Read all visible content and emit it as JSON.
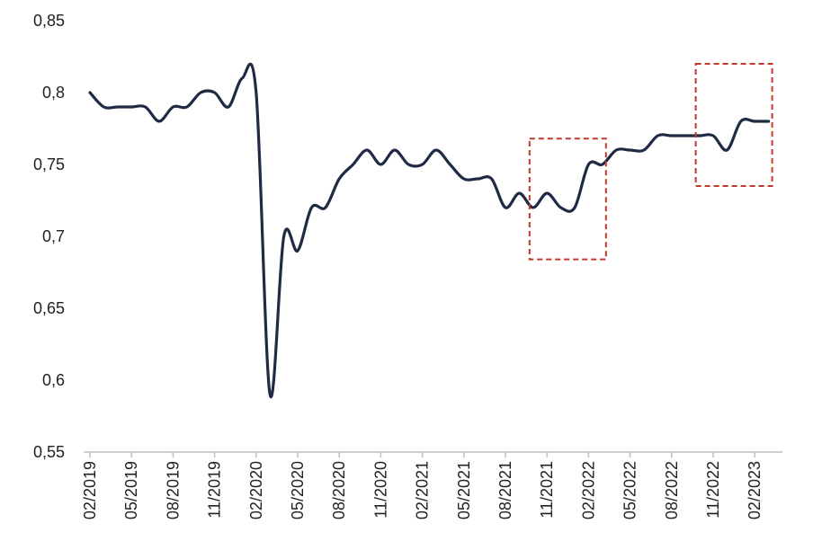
{
  "chart_data": {
    "type": "line",
    "title": "",
    "xlabel": "",
    "ylabel": "",
    "ylim": [
      0.55,
      0.85
    ],
    "y_ticks": [
      "0,55",
      "0,6",
      "0,65",
      "0,7",
      "0,75",
      "0,8",
      "0,85"
    ],
    "y_tick_values": [
      0.55,
      0.6,
      0.65,
      0.7,
      0.75,
      0.8,
      0.85
    ],
    "x_ticks": [
      "02/2019",
      "05/2019",
      "08/2019",
      "11/2019",
      "02/2020",
      "05/2020",
      "08/2020",
      "11/2020",
      "02/2021",
      "05/2021",
      "08/2021",
      "11/2021",
      "02/2022",
      "05/2022",
      "08/2022",
      "11/2022",
      "02/2023"
    ],
    "grid": false,
    "legend": "none",
    "line_color": "#1f2a44",
    "annotation_color": "#c0392b",
    "series": [
      {
        "x": [
          "02/2019",
          "03/2019",
          "04/2019",
          "05/2019",
          "06/2019",
          "07/2019",
          "08/2019",
          "09/2019",
          "10/2019",
          "11/2019",
          "12/2019",
          "01/2020",
          "02/2020",
          "03/2020",
          "04/2020",
          "05/2020",
          "06/2020",
          "07/2020",
          "08/2020",
          "09/2020",
          "10/2020",
          "11/2020",
          "12/2020",
          "01/2021",
          "02/2021",
          "03/2021",
          "04/2021",
          "05/2021",
          "06/2021",
          "07/2021",
          "08/2021",
          "09/2021",
          "10/2021",
          "11/2021",
          "12/2021",
          "01/2022",
          "02/2022",
          "03/2022",
          "04/2022",
          "05/2022",
          "06/2022",
          "07/2022",
          "08/2022",
          "09/2022",
          "10/2022",
          "11/2022",
          "12/2022",
          "01/2023",
          "02/2023",
          "03/2023"
        ],
        "values": [
          0.8,
          0.79,
          0.79,
          0.79,
          0.79,
          0.78,
          0.79,
          0.79,
          0.8,
          0.8,
          0.79,
          0.81,
          0.8,
          0.59,
          0.7,
          0.69,
          0.72,
          0.72,
          0.74,
          0.75,
          0.76,
          0.75,
          0.76,
          0.75,
          0.75,
          0.76,
          0.75,
          0.74,
          0.74,
          0.74,
          0.72,
          0.73,
          0.72,
          0.73,
          0.72,
          0.72,
          0.75,
          0.75,
          0.76,
          0.76,
          0.76,
          0.77,
          0.77,
          0.77,
          0.77,
          0.77,
          0.76,
          0.78,
          0.78,
          0.78
        ]
      }
    ],
    "annotations": [
      {
        "type": "dashed-box",
        "x_from": "10/2021",
        "x_to": "03/2022",
        "y_from": 0.684,
        "y_to": 0.768
      },
      {
        "type": "dashed-box",
        "x_from": "10/2022",
        "x_to": "03/2023",
        "y_from": 0.735,
        "y_to": 0.82
      }
    ]
  }
}
